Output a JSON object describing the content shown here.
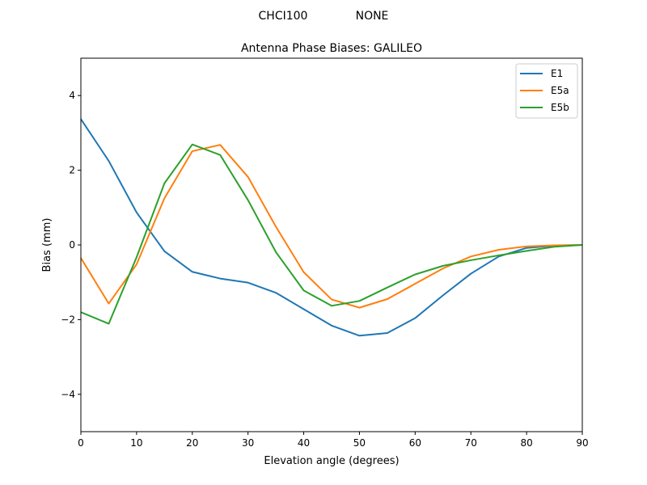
{
  "figure": {
    "suptitle_left": "CHCI100",
    "suptitle_right": "NONE"
  },
  "chart_data": {
    "type": "line",
    "title": "Antenna Phase Biases: GALILEO",
    "xlabel": "Elevation angle (degrees)",
    "ylabel": "Bias (mm)",
    "xlim": [
      0,
      90
    ],
    "ylim": [
      -5,
      5
    ],
    "xticks": [
      0,
      10,
      20,
      30,
      40,
      50,
      60,
      70,
      80,
      90
    ],
    "yticks": [
      -4,
      -2,
      0,
      2,
      4
    ],
    "ytick_labels": [
      "−4",
      "−2",
      "0",
      "2",
      "4"
    ],
    "grid": false,
    "legend_position": "top-right",
    "x": [
      0,
      5,
      10,
      15,
      20,
      25,
      30,
      35,
      40,
      45,
      50,
      55,
      60,
      65,
      70,
      75,
      80,
      85,
      90
    ],
    "series": [
      {
        "name": "E1",
        "color": "#1f77b4",
        "values": [
          3.37,
          2.25,
          0.87,
          -0.17,
          -0.72,
          -0.9,
          -1.01,
          -1.28,
          -1.72,
          -2.16,
          -2.43,
          -2.36,
          -1.96,
          -1.35,
          -0.77,
          -0.31,
          -0.08,
          -0.02,
          0.0
        ]
      },
      {
        "name": "E5a",
        "color": "#ff7f0e",
        "values": [
          -0.35,
          -1.57,
          -0.52,
          1.25,
          2.51,
          2.68,
          1.82,
          0.49,
          -0.73,
          -1.46,
          -1.68,
          -1.45,
          -1.04,
          -0.63,
          -0.31,
          -0.13,
          -0.04,
          -0.01,
          0.0
        ]
      },
      {
        "name": "E5b",
        "color": "#2ca02c",
        "values": [
          -1.8,
          -2.11,
          -0.33,
          1.65,
          2.69,
          2.41,
          1.2,
          -0.19,
          -1.22,
          -1.63,
          -1.5,
          -1.14,
          -0.79,
          -0.56,
          -0.41,
          -0.28,
          -0.16,
          -0.05,
          0.0
        ]
      }
    ]
  }
}
